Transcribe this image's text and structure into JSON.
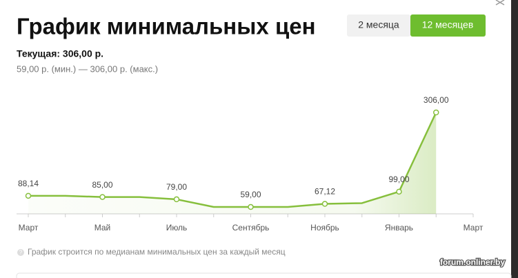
{
  "header": {
    "title": "График минимальных цен",
    "buttons": [
      "2 месяца",
      "12 месяцев"
    ]
  },
  "summary": {
    "current": "Текущая: 306,00 р.",
    "range": "59,00 р. (мин.) — 306,00 р. (макс.)"
  },
  "note": "График строится по медианам минимальных цен за каждый месяц",
  "watermark": "forum.onliner.by",
  "chart_data": {
    "type": "line",
    "categories": [
      "Март",
      null,
      "Май",
      null,
      "Июль",
      null,
      "Сентябрь",
      null,
      "Ноябрь",
      null,
      "Январь",
      null,
      "Март"
    ],
    "values": [
      88.14,
      88,
      85.0,
      85,
      79.0,
      59,
      59.0,
      59,
      67.12,
      69,
      99.0,
      306.0,
      null
    ],
    "value_labels": [
      "88,14",
      null,
      "85,00",
      null,
      "79,00",
      null,
      "59,00",
      null,
      "67,12",
      null,
      "99,00",
      "306,00",
      null
    ],
    "color": "#86bf3c",
    "ylim": [
      41,
      306
    ]
  }
}
